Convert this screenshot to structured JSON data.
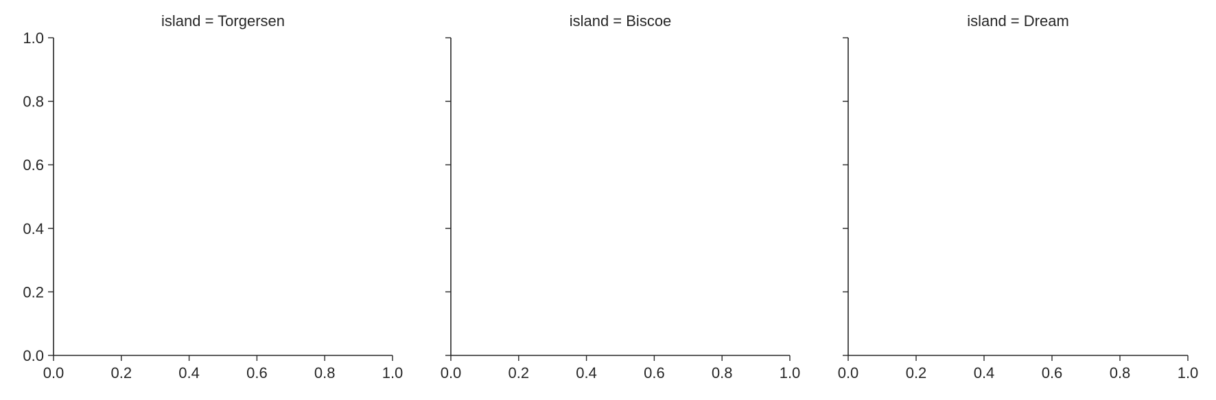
{
  "chart_data": [
    {
      "type": "scatter",
      "title": "island = Torgersen",
      "xlabel": "",
      "ylabel": "",
      "xlim": [
        0.0,
        1.0
      ],
      "ylim": [
        0.0,
        1.0
      ],
      "xticks": [
        "0.0",
        "0.2",
        "0.4",
        "0.6",
        "0.8",
        "1.0"
      ],
      "yticks": [
        "0.0",
        "0.2",
        "0.4",
        "0.6",
        "0.8",
        "1.0"
      ],
      "show_yticklabels": true,
      "grid": false,
      "series": []
    },
    {
      "type": "scatter",
      "title": "island = Biscoe",
      "xlabel": "",
      "ylabel": "",
      "xlim": [
        0.0,
        1.0
      ],
      "ylim": [
        0.0,
        1.0
      ],
      "xticks": [
        "0.0",
        "0.2",
        "0.4",
        "0.6",
        "0.8",
        "1.0"
      ],
      "yticks": [],
      "show_yticklabels": false,
      "grid": false,
      "series": []
    },
    {
      "type": "scatter",
      "title": "island = Dream",
      "xlabel": "",
      "ylabel": "",
      "xlim": [
        0.0,
        1.0
      ],
      "ylim": [
        0.0,
        1.0
      ],
      "xticks": [
        "0.0",
        "0.2",
        "0.4",
        "0.6",
        "0.8",
        "1.0"
      ],
      "yticks": [],
      "show_yticklabels": false,
      "grid": false,
      "series": []
    }
  ],
  "colors": {
    "axis": "#262626",
    "text": "#262626",
    "background": "#ffffff"
  }
}
